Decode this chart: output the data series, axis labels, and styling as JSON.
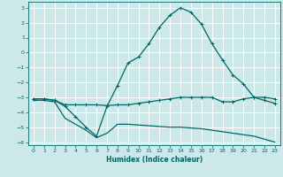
{
  "xlabel": "Humidex (Indice chaleur)",
  "bg_color": "#cce8e8",
  "grid_color": "#ffffff",
  "line_color": "#006666",
  "xlim": [
    -0.5,
    23.5
  ],
  "ylim": [
    -6.2,
    3.4
  ],
  "xticks": [
    0,
    1,
    2,
    3,
    4,
    5,
    6,
    7,
    8,
    9,
    10,
    11,
    12,
    13,
    14,
    15,
    16,
    17,
    18,
    19,
    20,
    21,
    22,
    23
  ],
  "yticks": [
    -6,
    -5,
    -4,
    -3,
    -2,
    -1,
    0,
    1,
    2,
    3
  ],
  "line1_x": [
    0,
    1,
    2,
    3,
    4,
    5,
    6,
    7,
    8,
    9,
    10,
    11,
    12,
    13,
    14,
    15,
    16,
    17,
    18,
    19,
    20,
    21,
    22,
    23
  ],
  "line1_y": [
    -3.1,
    -3.1,
    -3.2,
    -3.5,
    -3.5,
    -3.5,
    -3.5,
    -3.55,
    -3.5,
    -3.5,
    -3.4,
    -3.3,
    -3.2,
    -3.1,
    -3.0,
    -3.0,
    -3.0,
    -3.0,
    -3.3,
    -3.3,
    -3.1,
    -3.0,
    -3.0,
    -3.1
  ],
  "line2_x": [
    0,
    1,
    2,
    3,
    4,
    5,
    6,
    7,
    8,
    9,
    10,
    11,
    12,
    13,
    14,
    15,
    16,
    17,
    18,
    19,
    20,
    21,
    22,
    23
  ],
  "line2_y": [
    -3.2,
    -3.2,
    -3.3,
    -4.4,
    -4.8,
    -5.2,
    -5.7,
    -5.4,
    -4.8,
    -4.8,
    -4.85,
    -4.9,
    -4.95,
    -5.0,
    -5.0,
    -5.05,
    -5.1,
    -5.2,
    -5.3,
    -5.4,
    -5.5,
    -5.6,
    -5.8,
    -6.0
  ],
  "line3_x": [
    0,
    1,
    2,
    3,
    4,
    5,
    6,
    7,
    8,
    9,
    10,
    11,
    12,
    13,
    14,
    15,
    16,
    17,
    18,
    19,
    20,
    21,
    22,
    23
  ],
  "line3_y": [
    -3.1,
    -3.1,
    -3.2,
    -3.6,
    -4.3,
    -5.0,
    -5.6,
    -3.6,
    -2.2,
    -0.7,
    -0.3,
    0.6,
    1.7,
    2.5,
    3.0,
    2.7,
    1.9,
    0.6,
    -0.5,
    -1.5,
    -2.1,
    -3.0,
    -3.2,
    -3.4
  ]
}
